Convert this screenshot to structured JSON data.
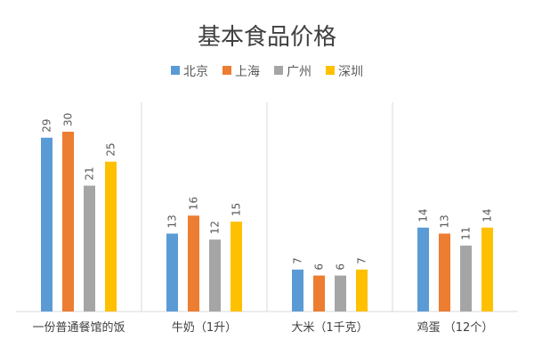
{
  "chart_data": {
    "type": "bar",
    "title": "基本食品价格",
    "categories": [
      "一份普通餐馆的饭",
      "牛奶（1升）",
      "大米（1千克）",
      "鸡蛋 （12个）"
    ],
    "series": [
      {
        "name": "北京",
        "color": "#5B9BD5",
        "values": [
          29,
          13,
          7,
          14
        ]
      },
      {
        "name": "上海",
        "color": "#ED7D31",
        "values": [
          30,
          16,
          6,
          13
        ]
      },
      {
        "name": "广州",
        "color": "#A5A5A5",
        "values": [
          21,
          12,
          6,
          11
        ]
      },
      {
        "name": "深圳",
        "color": "#FFC000",
        "values": [
          25,
          15,
          7,
          14
        ]
      }
    ],
    "ylim": [
      0,
      30
    ],
    "grid": false,
    "legend_position": "top",
    "data_labels": true,
    "data_label_orientation": "vertical"
  }
}
